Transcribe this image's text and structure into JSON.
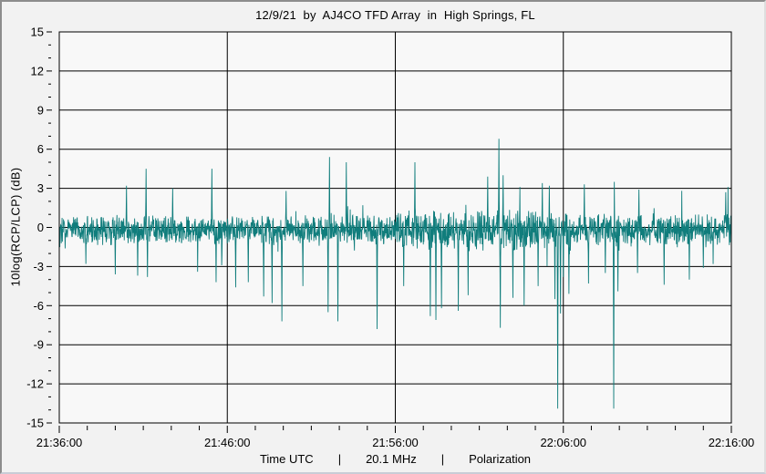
{
  "header": {
    "title": "12/9/21  by  AJ4CO TFD Array  in  High Springs, FL"
  },
  "footer": {
    "items": [
      "Time UTC",
      "|",
      "20.1 MHz",
      "|",
      "Polarization"
    ]
  },
  "colors": {
    "trace": "#107d7c",
    "plot_bg": "#f8f8f8",
    "grid": "#000000",
    "frame": "#000000",
    "window_bg": "#f2f2f2"
  },
  "chart_data": {
    "type": "line",
    "title": "12/9/21  by  AJ4CO TFD Array  in  High Springs, FL",
    "ylabel": "10log(RCP/LCP) (dB)",
    "xlabel": "Time UTC",
    "series_name": "Polarization 10log(RCP/LCP)",
    "x_start": "21:36:00",
    "x_end": "22:16:00",
    "x_major_ticks": [
      "21:36:00",
      "21:46:00",
      "21:56:00",
      "22:06:00",
      "22:16:00"
    ],
    "x_minor_tick_seconds": 100,
    "ylim": [
      -15,
      15
    ],
    "y_tick_step": 3,
    "y_minor_step": 1,
    "grid": true,
    "legend": "none",
    "baseline_mean_db": -0.2,
    "noise_profile": [
      {
        "from": "21:36:00",
        "to": "21:56:00",
        "peak_to_peak_db": 2.0
      },
      {
        "from": "21:56:00",
        "to": "22:07:00",
        "peak_to_peak_db": 2.7
      },
      {
        "from": "22:07:00",
        "to": "22:16:00",
        "peak_to_peak_db": 2.2
      }
    ],
    "spikes_time_db": [
      [
        "21:37:35",
        -2.8
      ],
      [
        "21:39:20",
        -3.6
      ],
      [
        "21:40:00",
        3.2
      ],
      [
        "21:40:40",
        -3.7
      ],
      [
        "21:41:10",
        4.5
      ],
      [
        "21:41:15",
        -3.8
      ],
      [
        "21:42:45",
        3.0
      ],
      [
        "21:45:05",
        4.5
      ],
      [
        "21:45:20",
        -4.2
      ],
      [
        "21:46:30",
        -4.6
      ],
      [
        "21:47:15",
        -4.2
      ],
      [
        "21:48:10",
        -5.3
      ],
      [
        "21:48:40",
        -5.8
      ],
      [
        "21:49:15",
        -7.2
      ],
      [
        "21:49:30",
        2.8
      ],
      [
        "21:50:30",
        -4.5
      ],
      [
        "21:52:00",
        -6.5
      ],
      [
        "21:52:05",
        5.4
      ],
      [
        "21:52:35",
        -7.2
      ],
      [
        "21:53:05",
        5.0
      ],
      [
        "21:54:55",
        -7.8
      ],
      [
        "21:56:30",
        -4.5
      ],
      [
        "21:57:10",
        5.0
      ],
      [
        "21:58:05",
        -6.8
      ],
      [
        "21:58:25",
        -7.1
      ],
      [
        "21:58:45",
        -6.2
      ],
      [
        "21:59:45",
        -6.4
      ],
      [
        "22:00:20",
        -5.2
      ],
      [
        "22:01:30",
        3.9
      ],
      [
        "22:02:10",
        6.8
      ],
      [
        "22:02:15",
        -7.7
      ],
      [
        "22:02:25",
        4.0
      ],
      [
        "22:03:00",
        -5.4
      ],
      [
        "22:03:25",
        3.1
      ],
      [
        "22:03:40",
        -6.0
      ],
      [
        "22:04:30",
        -4.5
      ],
      [
        "22:04:45",
        3.4
      ],
      [
        "22:05:10",
        3.2
      ],
      [
        "22:05:30",
        -5.5
      ],
      [
        "22:05:40",
        -13.9
      ],
      [
        "22:05:50",
        -6.6
      ],
      [
        "22:06:00",
        -3.8
      ],
      [
        "22:06:20",
        -5.1
      ],
      [
        "22:07:15",
        3.3
      ],
      [
        "22:07:30",
        -4.3
      ],
      [
        "22:08:30",
        -3.5
      ],
      [
        "22:09:00",
        -13.9
      ],
      [
        "22:09:02",
        3.5
      ],
      [
        "22:09:15",
        -4.9
      ],
      [
        "22:10:25",
        -3.5
      ],
      [
        "22:10:30",
        2.9
      ],
      [
        "22:12:00",
        -4.4
      ],
      [
        "22:13:30",
        -4.0
      ],
      [
        "22:14:20",
        -3.1
      ],
      [
        "22:15:40",
        2.7
      ]
    ]
  }
}
